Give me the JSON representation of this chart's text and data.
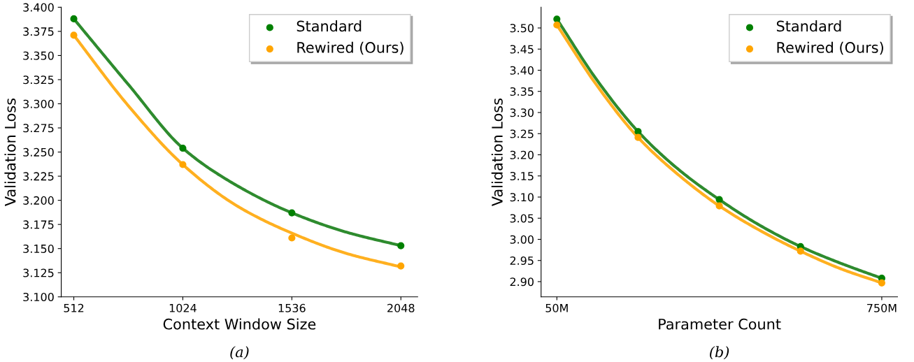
{
  "chart_data": [
    {
      "type": "scatter",
      "xlabel": "Context Window Size",
      "ylabel": "Validation Loss",
      "annotations": [
        "(a)"
      ],
      "legend": "top right",
      "grid": false,
      "xlim": [
        453,
        2127
      ],
      "xticks": [
        512,
        1024,
        1536,
        2048
      ],
      "ylim": [
        3.1,
        3.4
      ],
      "yticks": [
        {
          "value": 3.1,
          "label": "3.100"
        },
        {
          "value": 3.125,
          "label": "3.125"
        },
        {
          "value": 3.15,
          "label": "3.150"
        },
        {
          "value": 3.175,
          "label": "3.175"
        },
        {
          "value": 3.2,
          "label": "3.200"
        },
        {
          "value": 3.225,
          "label": "3.225"
        },
        {
          "value": 3.25,
          "label": "3.250"
        },
        {
          "value": 3.275,
          "label": "3.275"
        },
        {
          "value": 3.3,
          "label": "3.300"
        },
        {
          "value": 3.325,
          "label": "3.325"
        },
        {
          "value": 3.35,
          "label": "3.350"
        },
        {
          "value": 3.375,
          "label": "3.375"
        },
        {
          "value": 3.4,
          "label": "3.400"
        }
      ],
      "series": [
        {
          "type": "line",
          "color": "#2e8b2e",
          "x": [
            512,
            768,
            1024,
            1280,
            1536,
            1792,
            2048
          ],
          "values": [
            3.388,
            3.32,
            3.254,
            3.215,
            3.187,
            3.167,
            3.153
          ]
        },
        {
          "type": "line",
          "color": "#ffb020",
          "x": [
            512,
            768,
            1024,
            1280,
            1536,
            1792,
            2048
          ],
          "values": [
            3.371,
            3.298,
            3.237,
            3.194,
            3.166,
            3.145,
            3.131
          ]
        },
        {
          "name": "Standard",
          "marker": "circle",
          "color": "#008000",
          "x": [
            512,
            1024,
            1536,
            2048
          ],
          "values": [
            3.388,
            3.254,
            3.187,
            3.153
          ]
        },
        {
          "name": "Rewired (Ours)",
          "marker": "circle",
          "color": "#ffa500",
          "x": [
            512,
            1024,
            1536,
            2048
          ],
          "values": [
            3.371,
            3.237,
            3.161,
            3.132
          ]
        }
      ]
    },
    {
      "type": "scatter",
      "xlabel": "Parameter Count",
      "ylabel": "Validation Loss",
      "annotations": [
        "(b)"
      ],
      "legend": "top right",
      "grid": false,
      "xlim": [
        16,
        784
      ],
      "xticks": [
        {
          "value": 50,
          "label": "50M"
        },
        {
          "value": 750,
          "label": "750M"
        }
      ],
      "ylim": [
        2.864,
        3.549
      ],
      "yticks": [
        {
          "value": 2.9,
          "label": "2.90"
        },
        {
          "value": 2.95,
          "label": "2.95"
        },
        {
          "value": 3.0,
          "label": "3.00"
        },
        {
          "value": 3.05,
          "label": "3.05"
        },
        {
          "value": 3.1,
          "label": "3.10"
        },
        {
          "value": 3.15,
          "label": "3.15"
        },
        {
          "value": 3.2,
          "label": "3.20"
        },
        {
          "value": 3.25,
          "label": "3.25"
        },
        {
          "value": 3.3,
          "label": "3.30"
        },
        {
          "value": 3.35,
          "label": "3.35"
        },
        {
          "value": 3.4,
          "label": "3.40"
        },
        {
          "value": 3.45,
          "label": "3.45"
        },
        {
          "value": 3.5,
          "label": "3.50"
        }
      ],
      "series": [
        {
          "type": "line",
          "color": "#2e8b2e",
          "x": [
            50,
            137.5,
            225,
            312.5,
            400,
            487.5,
            575,
            662.5,
            750
          ],
          "values": [
            3.521,
            3.375,
            3.255,
            3.165,
            3.094,
            3.033,
            2.983,
            2.943,
            2.908
          ]
        },
        {
          "type": "line",
          "color": "#ffb020",
          "x": [
            50,
            137.5,
            225,
            312.5,
            400,
            487.5,
            575,
            662.5,
            750
          ],
          "values": [
            3.507,
            3.362,
            3.241,
            3.152,
            3.079,
            3.021,
            2.972,
            2.93,
            2.897
          ]
        },
        {
          "name": "Standard",
          "marker": "circle",
          "color": "#008000",
          "x": [
            50,
            225,
            400,
            575,
            750
          ],
          "values": [
            3.521,
            3.255,
            3.094,
            2.983,
            2.908
          ]
        },
        {
          "name": "Rewired (Ours)",
          "marker": "circle",
          "color": "#ffa500",
          "x": [
            50,
            225,
            400,
            575,
            750
          ],
          "values": [
            3.507,
            3.241,
            3.079,
            2.972,
            2.897
          ]
        }
      ]
    }
  ]
}
